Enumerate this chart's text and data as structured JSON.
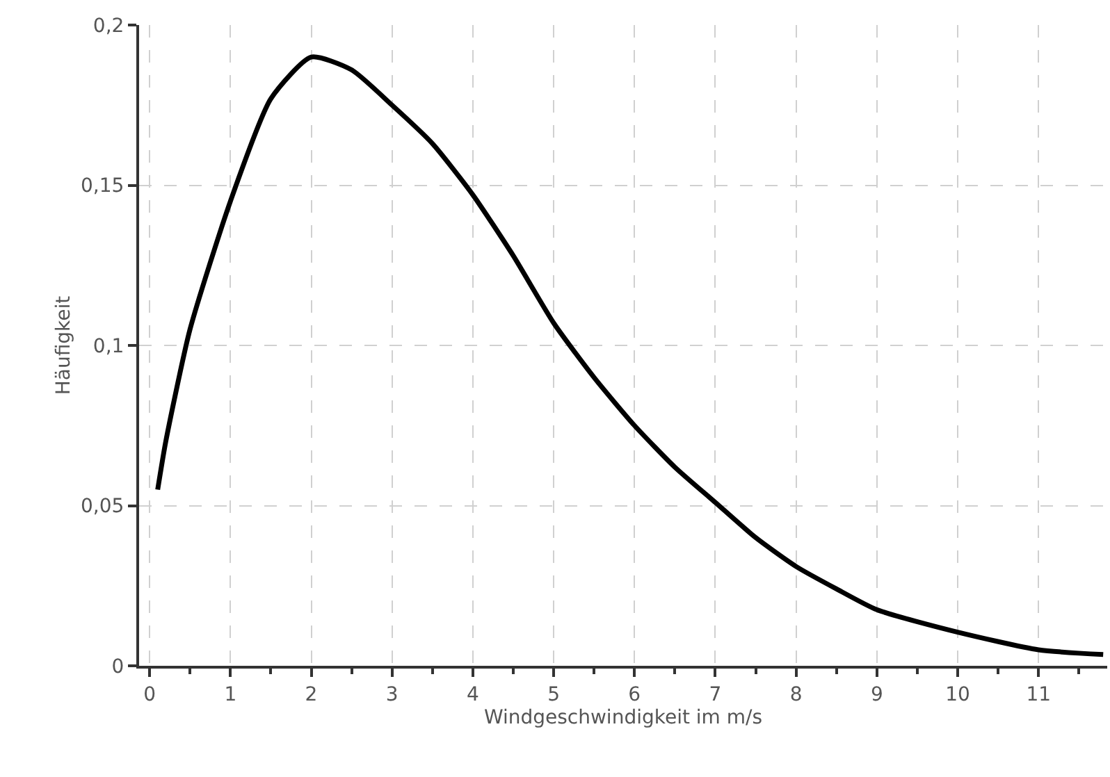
{
  "chart_data": {
    "type": "line",
    "xlabel": "Windgeschwindigkeit im m/s",
    "ylabel": "Häufigkeit",
    "series": [
      {
        "color": "#000000",
        "x": [
          0.1,
          0.2,
          0.5,
          1,
          1.5,
          2,
          2.5,
          3,
          3.5,
          4,
          4.5,
          5,
          5.5,
          6,
          6.5,
          7,
          7.5,
          8,
          8.5,
          9,
          10,
          11,
          11.8
        ],
        "values": [
          0.055,
          0.07,
          0.105,
          0.145,
          0.177,
          0.19,
          0.186,
          0.175,
          0.163,
          0.147,
          0.128,
          0.107,
          0.09,
          0.075,
          0.062,
          0.051,
          0.04,
          0.031,
          0.024,
          0.0175,
          0.0105,
          0.005,
          0.0035
        ]
      }
    ],
    "xlim": [
      -0.13,
      11.85
    ],
    "ylim": [
      0,
      0.2
    ],
    "xticks": [
      0,
      {
        "value": 0.5,
        "label": null
      },
      1,
      {
        "value": 1.5,
        "label": null
      },
      2,
      {
        "value": 2.5,
        "label": null
      },
      3,
      {
        "value": 3.5,
        "label": null
      },
      4,
      {
        "value": 4.5,
        "label": null
      },
      5,
      {
        "value": 5.5,
        "label": null
      },
      6,
      {
        "value": 6.5,
        "label": null
      },
      7,
      {
        "value": 7.5,
        "label": null
      },
      8,
      {
        "value": 8.5,
        "label": null
      },
      9,
      {
        "value": 9.5,
        "label": null
      },
      10,
      {
        "value": 10.5,
        "label": null
      },
      11,
      {
        "value": 11.5,
        "label": null
      }
    ],
    "yticks": [
      0,
      {
        "value": 0.05,
        "label": "0,05"
      },
      {
        "value": 0.1,
        "label": "0,1"
      },
      {
        "value": 0.15,
        "label": "0,15"
      },
      {
        "value": 0.2,
        "label": "0,2"
      }
    ],
    "grid": true,
    "marker": "none",
    "line_style": "solid"
  }
}
